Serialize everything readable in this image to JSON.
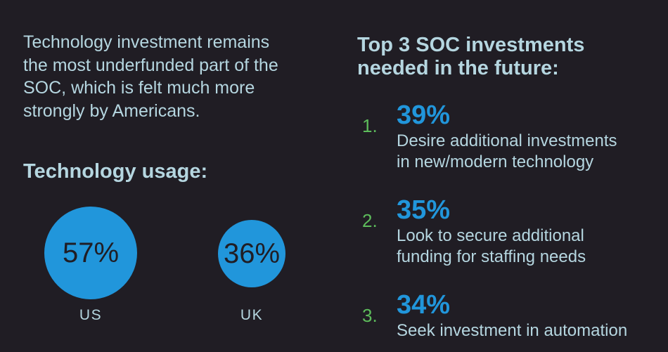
{
  "colors": {
    "background": "#201d24",
    "text_light_blue": "#b5d6e0",
    "accent_blue": "#2196db",
    "accent_green": "#5dbc5b",
    "bubble_text_dark": "#201d24"
  },
  "intro": {
    "text": "Technology investment remains\nthe most underfunded part of the\nSOC, which is felt much more\nstrongly by Americans."
  },
  "chart_data": [
    {
      "type": "bubble",
      "title": "Technology usage:",
      "categories": [
        "US",
        "UK"
      ],
      "values": [
        57,
        36
      ],
      "labels": [
        "57%",
        "36%"
      ],
      "unit": "percent",
      "bubble_color": "#2196db",
      "layout": "bubble area proportional to value, labels centered inside, category names below"
    },
    {
      "type": "table",
      "title": "Top 3 SOC investments\nneeded in the future:",
      "values": [
        39,
        35,
        34
      ],
      "rows": [
        {
          "rank": "1.",
          "value": 39,
          "label": "39%",
          "description": "Desire additional investments\nin new/modern technology"
        },
        {
          "rank": "2.",
          "value": 35,
          "label": "35%",
          "description": "Look to secure additional\nfunding for staffing needs"
        },
        {
          "rank": "3.",
          "value": 34,
          "label": "34%",
          "description": "Seek investment in automation"
        }
      ]
    }
  ]
}
